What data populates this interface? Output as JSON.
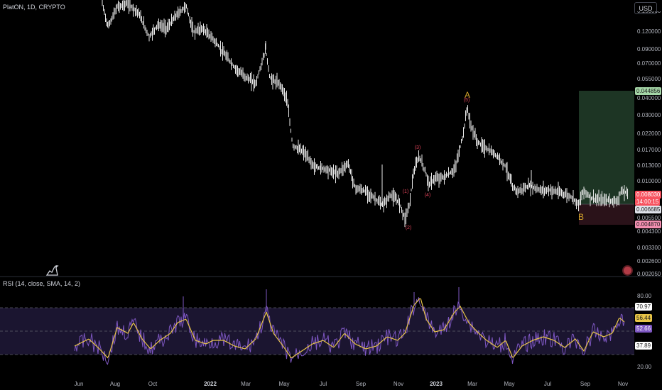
{
  "header": {
    "symbol": "PlatON, 1D, CRYPTO",
    "currency": "USD"
  },
  "price_axis": {
    "ticks": [
      "0.120000",
      "0.090000",
      "0.070000",
      "0.055000",
      "0.040000",
      "0.030000",
      "0.022000",
      "0.017000",
      "0.013000",
      "0.010000",
      "0.005500",
      "0.004300",
      "0.003300",
      "0.002600",
      "0.002050"
    ],
    "cut_top_label": "0.150000"
  },
  "price_tags": {
    "target": {
      "value": "0.044856",
      "bg": "#a5d6a7",
      "fg": "#1b1b1b"
    },
    "last": {
      "value": "0.008030",
      "bg": "#f7525f",
      "fg": "#ffffff"
    },
    "countdown": {
      "value": "14:00:15",
      "bg": "#f7525f",
      "fg": "#ffffff"
    },
    "entry": {
      "value": "0.006685",
      "bg": "#e0e3eb",
      "fg": "#1b1b1b"
    },
    "stop": {
      "value": "0.004870",
      "bg": "#f48fb1",
      "fg": "#1b1b1b"
    }
  },
  "waves": {
    "A": "A",
    "B": "B",
    "w5": "(5)",
    "w3": "(3)",
    "w1": "(1)",
    "w2": "(2)",
    "w4": "(4)"
  },
  "rsi": {
    "title": "RSI (14, close, SMA, 14, 2)",
    "axis": [
      "80.00",
      "20.00"
    ],
    "tags": {
      "upper": {
        "value": "70.97",
        "bg": "#ffffff",
        "fg": "#1b1b1b"
      },
      "ma": {
        "value": "56.44",
        "bg": "#e8c547",
        "fg": "#1b1b1b"
      },
      "rsi": {
        "value": "52.66",
        "bg": "#7e57c2",
        "fg": "#ffffff"
      },
      "lower": {
        "value": "37.89",
        "bg": "#ffffff",
        "fg": "#1b1b1b"
      }
    },
    "colors": {
      "rsi": "#7e57c2",
      "ma": "#e8c547",
      "band": "#1b1530"
    }
  },
  "time_axis": [
    "Jun",
    "Aug",
    "Oct",
    "2022",
    "Mar",
    "May",
    "Jul",
    "Sep",
    "Nov",
    "2023",
    "Mar",
    "May",
    "Jul",
    "Sep",
    "Nov"
  ],
  "colors": {
    "candle": "#e8e8e8",
    "profit_zone": "#1d3524",
    "loss_zone": "#2a1219",
    "grid_line": "#2a2e39"
  }
}
